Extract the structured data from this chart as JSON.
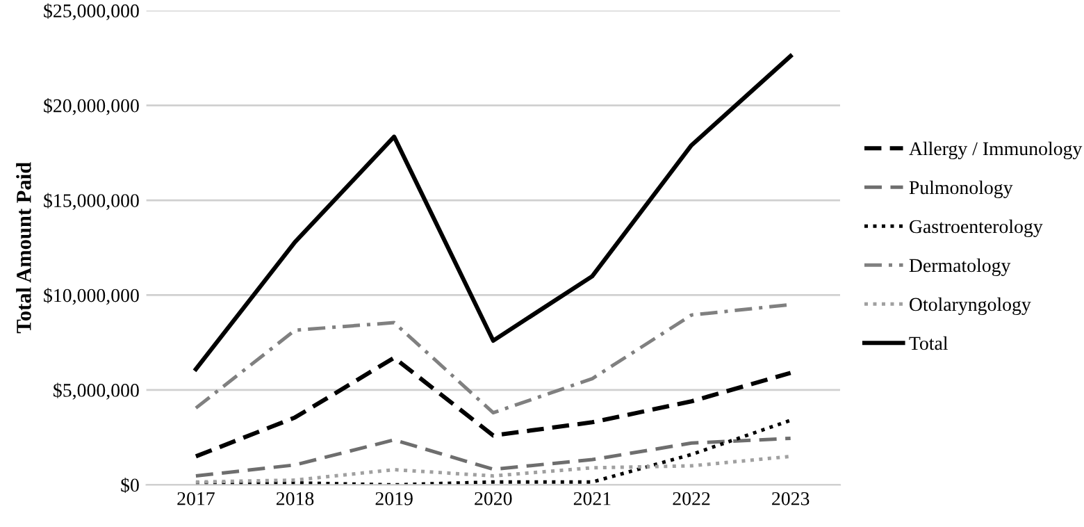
{
  "chart_data": {
    "type": "line",
    "ylabel": "Total Amount Paid",
    "categories": [
      "2017",
      "2018",
      "2019",
      "2020",
      "2021",
      "2022",
      "2023"
    ],
    "series": [
      {
        "name": "Allergy / Immunology",
        "color": "#000000",
        "line_style": "dashed",
        "values": [
          1500000,
          3550000,
          6700000,
          2600000,
          3300000,
          4400000,
          5900000
        ]
      },
      {
        "name": "Pulmonology",
        "color": "#6e6e6e",
        "line_style": "longdash",
        "values": [
          470000,
          1050000,
          2370000,
          820000,
          1330000,
          2200000,
          2450000
        ]
      },
      {
        "name": "Gastroenterology",
        "color": "#000000",
        "line_style": "dotted",
        "values": [
          100000,
          100000,
          0,
          150000,
          150000,
          1600000,
          3400000
        ]
      },
      {
        "name": "Dermatology",
        "color": "#808080",
        "line_style": "dashdot",
        "values": [
          4050000,
          8150000,
          8550000,
          3800000,
          5600000,
          8950000,
          9500000
        ]
      },
      {
        "name": "Otolaryngology",
        "color": "#a0a0a0",
        "line_style": "dotted",
        "values": [
          150000,
          250000,
          800000,
          470000,
          900000,
          1000000,
          1500000
        ]
      },
      {
        "name": "Total",
        "color": "#000000",
        "line_style": "solid",
        "values": [
          6100000,
          12800000,
          18350000,
          7600000,
          11000000,
          17900000,
          22600000
        ]
      }
    ],
    "ylim": [
      0,
      25000000
    ],
    "yticks": [
      {
        "value": 0,
        "label": "$0"
      },
      {
        "value": 5000000,
        "label": "$5,000,000"
      },
      {
        "value": 10000000,
        "label": "$10,000,000"
      },
      {
        "value": 15000000,
        "label": "$15,000,000"
      },
      {
        "value": 20000000,
        "label": "$20,000,000"
      },
      {
        "value": 25000000,
        "label": "$25,000,000"
      }
    ],
    "grid": "y",
    "legend": "right",
    "marker": "none"
  }
}
